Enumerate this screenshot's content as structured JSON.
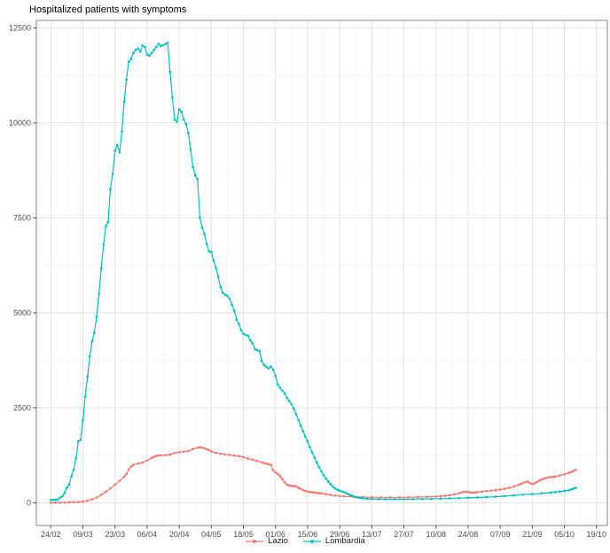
{
  "window": {
    "background": "#ffffff"
  },
  "styles": {
    "grid_major": "#e3e3e3",
    "grid_minor": "#f1f1f1",
    "panel_border": "#878787",
    "axis_tick_color": "#4d4d4d",
    "axis_text_color": "#4d4d4d",
    "title_color": "#000000",
    "accent_lazio": "#F8766D",
    "accent_lombardia": "#00BFC4"
  },
  "chart_data": {
    "type": "line",
    "title": "Hospitalized patients with symptoms",
    "xlabel": "",
    "ylabel": "",
    "x_axis": {
      "unit": "date (dd/mm), daily data starting 24/02/2020",
      "tick_labels": [
        "24/02",
        "09/03",
        "23/03",
        "06/04",
        "20/04",
        "04/05",
        "18/05",
        "01/06",
        "15/06",
        "29/06",
        "13/07",
        "27/07",
        "10/08",
        "24/08",
        "07/09",
        "21/09",
        "05/10",
        "19/10"
      ],
      "tick_days": [
        0,
        14,
        28,
        42,
        56,
        70,
        84,
        98,
        112,
        126,
        140,
        154,
        168,
        182,
        196,
        210,
        224,
        238
      ]
    },
    "y_axis": {
      "range": [
        0,
        12500
      ],
      "ticks": [
        0,
        2500,
        5000,
        7500,
        10000,
        12500
      ],
      "minor_ticks": [
        1250,
        3750,
        6250,
        8750,
        11250
      ]
    },
    "grid": true,
    "legend": {
      "position": "bottom-center",
      "entries": [
        {
          "label": "Lazio",
          "color": "#F8766D"
        },
        {
          "label": "Lombardia",
          "color": "#00BFC4"
        }
      ]
    },
    "series": [
      {
        "name": "Lazio",
        "color": "#F8766D",
        "marker": "circle",
        "points": [
          [
            0,
            2
          ],
          [
            2,
            3
          ],
          [
            4,
            5
          ],
          [
            6,
            8
          ],
          [
            8,
            14
          ],
          [
            10,
            18
          ],
          [
            12,
            24
          ],
          [
            14,
            32
          ],
          [
            16,
            55
          ],
          [
            18,
            90
          ],
          [
            20,
            140
          ],
          [
            22,
            210
          ],
          [
            24,
            290
          ],
          [
            26,
            380
          ],
          [
            28,
            480
          ],
          [
            30,
            580
          ],
          [
            32,
            690
          ],
          [
            33,
            760
          ],
          [
            34,
            880
          ],
          [
            35,
            960
          ],
          [
            36,
            1000
          ],
          [
            38,
            1030
          ],
          [
            40,
            1060
          ],
          [
            42,
            1115
          ],
          [
            44,
            1180
          ],
          [
            45,
            1210
          ],
          [
            46,
            1235
          ],
          [
            47,
            1248
          ],
          [
            48,
            1252
          ],
          [
            50,
            1258
          ],
          [
            52,
            1270
          ],
          [
            54,
            1310
          ],
          [
            56,
            1338
          ],
          [
            58,
            1348
          ],
          [
            60,
            1365
          ],
          [
            62,
            1415
          ],
          [
            64,
            1448
          ],
          [
            65,
            1462
          ],
          [
            66,
            1452
          ],
          [
            67,
            1438
          ],
          [
            68,
            1412
          ],
          [
            69,
            1390
          ],
          [
            70,
            1352
          ],
          [
            72,
            1318
          ],
          [
            74,
            1292
          ],
          [
            76,
            1276
          ],
          [
            78,
            1262
          ],
          [
            80,
            1246
          ],
          [
            82,
            1230
          ],
          [
            84,
            1200
          ],
          [
            86,
            1165
          ],
          [
            88,
            1135
          ],
          [
            90,
            1100
          ],
          [
            92,
            1070
          ],
          [
            93,
            1050
          ],
          [
            94,
            1030
          ],
          [
            95,
            1015
          ],
          [
            96,
            1000
          ],
          [
            97,
            860
          ],
          [
            98,
            800
          ],
          [
            99,
            760
          ],
          [
            100,
            700
          ],
          [
            101,
            620
          ],
          [
            102,
            540
          ],
          [
            103,
            480
          ],
          [
            104,
            455
          ],
          [
            105,
            448
          ],
          [
            106,
            442
          ],
          [
            107,
            436
          ],
          [
            108,
            395
          ],
          [
            109,
            372
          ],
          [
            110,
            335
          ],
          [
            111,
            312
          ],
          [
            112,
            296
          ],
          [
            113,
            286
          ],
          [
            114,
            278
          ],
          [
            115,
            270
          ],
          [
            116,
            262
          ],
          [
            117,
            255
          ],
          [
            118,
            248
          ],
          [
            120,
            225
          ],
          [
            122,
            208
          ],
          [
            124,
            192
          ],
          [
            126,
            178
          ],
          [
            128,
            168
          ],
          [
            132,
            158
          ],
          [
            136,
            151
          ],
          [
            140,
            147
          ],
          [
            144,
            145
          ],
          [
            148,
            144
          ],
          [
            152,
            145
          ],
          [
            156,
            148
          ],
          [
            160,
            152
          ],
          [
            164,
            158
          ],
          [
            168,
            168
          ],
          [
            170,
            175
          ],
          [
            172,
            186
          ],
          [
            174,
            202
          ],
          [
            176,
            225
          ],
          [
            178,
            250
          ],
          [
            179,
            268
          ],
          [
            180,
            285
          ],
          [
            181,
            292
          ],
          [
            182,
            285
          ],
          [
            183,
            272
          ],
          [
            184,
            268
          ],
          [
            185,
            272
          ],
          [
            186,
            280
          ],
          [
            188,
            295
          ],
          [
            190,
            310
          ],
          [
            192,
            322
          ],
          [
            194,
            335
          ],
          [
            196,
            348
          ],
          [
            198,
            368
          ],
          [
            200,
            398
          ],
          [
            202,
            432
          ],
          [
            204,
            472
          ],
          [
            205,
            498
          ],
          [
            206,
            522
          ],
          [
            207,
            548
          ],
          [
            208,
            560
          ],
          [
            209,
            515
          ],
          [
            210,
            495
          ],
          [
            211,
            515
          ],
          [
            212,
            550
          ],
          [
            213,
            585
          ],
          [
            214,
            615
          ],
          [
            215,
            640
          ],
          [
            216,
            658
          ],
          [
            217,
            670
          ],
          [
            218,
            678
          ],
          [
            219,
            683
          ],
          [
            220,
            692
          ],
          [
            222,
            720
          ],
          [
            224,
            752
          ],
          [
            226,
            790
          ],
          [
            227,
            812
          ],
          [
            228,
            838
          ],
          [
            229,
            868
          ]
        ]
      },
      {
        "name": "Lombardia",
        "color": "#00BFC4",
        "marker": "circle",
        "points": [
          [
            0,
            76
          ],
          [
            1,
            79
          ],
          [
            2,
            79
          ],
          [
            3,
            85
          ],
          [
            4,
            135
          ],
          [
            5,
            172
          ],
          [
            6,
            256
          ],
          [
            7,
            400
          ],
          [
            8,
            480
          ],
          [
            9,
            700
          ],
          [
            10,
            880
          ],
          [
            11,
            1170
          ],
          [
            12,
            1620
          ],
          [
            13,
            1660
          ],
          [
            14,
            2170
          ],
          [
            15,
            2800
          ],
          [
            16,
            3320
          ],
          [
            17,
            3850
          ],
          [
            18,
            4250
          ],
          [
            19,
            4480
          ],
          [
            20,
            4900
          ],
          [
            21,
            5500
          ],
          [
            22,
            6170
          ],
          [
            23,
            6800
          ],
          [
            24,
            7290
          ],
          [
            25,
            7390
          ],
          [
            26,
            8260
          ],
          [
            27,
            8660
          ],
          [
            28,
            9270
          ],
          [
            29,
            9420
          ],
          [
            30,
            9230
          ],
          [
            31,
            9780
          ],
          [
            32,
            10560
          ],
          [
            33,
            11140
          ],
          [
            34,
            11610
          ],
          [
            35,
            11690
          ],
          [
            36,
            11840
          ],
          [
            37,
            11920
          ],
          [
            38,
            11960
          ],
          [
            39,
            11880
          ],
          [
            40,
            12040
          ],
          [
            41,
            12000
          ],
          [
            42,
            11800
          ],
          [
            43,
            11770
          ],
          [
            44,
            11840
          ],
          [
            45,
            11920
          ],
          [
            46,
            12000
          ],
          [
            47,
            12080
          ],
          [
            48,
            12020
          ],
          [
            49,
            12050
          ],
          [
            50,
            12080
          ],
          [
            51,
            12110
          ],
          [
            52,
            11340
          ],
          [
            53,
            10670
          ],
          [
            54,
            10090
          ],
          [
            55,
            10030
          ],
          [
            56,
            10360
          ],
          [
            57,
            10290
          ],
          [
            58,
            10090
          ],
          [
            59,
            9970
          ],
          [
            60,
            9730
          ],
          [
            61,
            9300
          ],
          [
            62,
            8840
          ],
          [
            63,
            8620
          ],
          [
            64,
            8520
          ],
          [
            65,
            7510
          ],
          [
            66,
            7250
          ],
          [
            67,
            7080
          ],
          [
            68,
            6810
          ],
          [
            69,
            6620
          ],
          [
            70,
            6600
          ],
          [
            71,
            6380
          ],
          [
            72,
            6190
          ],
          [
            73,
            5950
          ],
          [
            74,
            5680
          ],
          [
            75,
            5530
          ],
          [
            76,
            5480
          ],
          [
            77,
            5450
          ],
          [
            78,
            5370
          ],
          [
            79,
            5210
          ],
          [
            80,
            5060
          ],
          [
            81,
            4820
          ],
          [
            82,
            4710
          ],
          [
            83,
            4550
          ],
          [
            84,
            4450
          ],
          [
            85,
            4420
          ],
          [
            86,
            4400
          ],
          [
            87,
            4280
          ],
          [
            88,
            4200
          ],
          [
            89,
            4050
          ],
          [
            90,
            4020
          ],
          [
            91,
            4000
          ],
          [
            92,
            3730
          ],
          [
            93,
            3630
          ],
          [
            94,
            3580
          ],
          [
            95,
            3540
          ],
          [
            96,
            3590
          ],
          [
            97,
            3500
          ],
          [
            98,
            3340
          ],
          [
            99,
            3110
          ],
          [
            100,
            3030
          ],
          [
            101,
            2960
          ],
          [
            102,
            2880
          ],
          [
            103,
            2760
          ],
          [
            104,
            2680
          ],
          [
            105,
            2600
          ],
          [
            106,
            2480
          ],
          [
            107,
            2330
          ],
          [
            108,
            2180
          ],
          [
            109,
            2030
          ],
          [
            110,
            1890
          ],
          [
            111,
            1750
          ],
          [
            112,
            1610
          ],
          [
            113,
            1470
          ],
          [
            114,
            1330
          ],
          [
            115,
            1190
          ],
          [
            116,
            1060
          ],
          [
            117,
            940
          ],
          [
            118,
            830
          ],
          [
            119,
            730
          ],
          [
            120,
            640
          ],
          [
            121,
            560
          ],
          [
            122,
            490
          ],
          [
            123,
            430
          ],
          [
            124,
            380
          ],
          [
            125,
            345
          ],
          [
            126,
            322
          ],
          [
            127,
            300
          ],
          [
            128,
            280
          ],
          [
            129,
            250
          ],
          [
            130,
            220
          ],
          [
            131,
            195
          ],
          [
            132,
            172
          ],
          [
            133,
            155
          ],
          [
            134,
            140
          ],
          [
            135,
            128
          ],
          [
            136,
            118
          ],
          [
            138,
            108
          ],
          [
            140,
            102
          ],
          [
            143,
            98
          ],
          [
            146,
            96
          ],
          [
            150,
            95
          ],
          [
            154,
            96
          ],
          [
            158,
            98
          ],
          [
            162,
            101
          ],
          [
            166,
            105
          ],
          [
            170,
            110
          ],
          [
            174,
            116
          ],
          [
            178,
            123
          ],
          [
            182,
            131
          ],
          [
            186,
            140
          ],
          [
            190,
            150
          ],
          [
            194,
            162
          ],
          [
            198,
            178
          ],
          [
            202,
            196
          ],
          [
            206,
            215
          ],
          [
            210,
            232
          ],
          [
            214,
            250
          ],
          [
            218,
            268
          ],
          [
            220,
            280
          ],
          [
            222,
            295
          ],
          [
            224,
            312
          ],
          [
            226,
            332
          ],
          [
            227,
            352
          ],
          [
            228,
            375
          ],
          [
            229,
            400
          ]
        ]
      }
    ]
  }
}
